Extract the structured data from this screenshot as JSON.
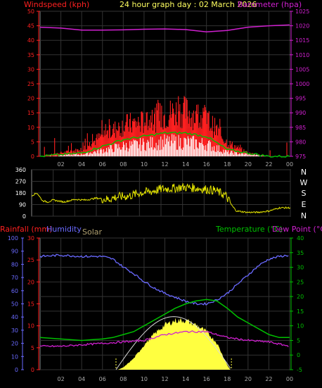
{
  "header": {
    "left_label": "Windspeed (kph)",
    "center_label": "24 hour graph day : 02 March 2026",
    "right_label": "Barometer (hpa)"
  },
  "lower_header": {
    "rain_label": "Rainfall (mm)",
    "humidity_label": "Humidity",
    "solar_label": "Solar",
    "temp_label": "Temperature (°C)",
    "dew_label": "Dew Point (°C)"
  },
  "colors": {
    "wind": "#ff2020",
    "gust_avg": "#00c000",
    "wind_avg": "#ffffff",
    "barometer": "#d020d0",
    "direction": "#e6e600",
    "humidity": "#6a6aff",
    "temperature": "#00c000",
    "dewpoint": "#d020d0",
    "solar_fill": "#ffff40",
    "axis_wind": "#ff2020",
    "axis_baro": "#d020d0",
    "axis_rain": "#ff2020",
    "axis_hum": "#6a6aff",
    "axis_temp": "#00c000"
  },
  "chart_data": [
    {
      "id": "wind",
      "type": "line",
      "xlabel": "",
      "x_ticks": [
        "02",
        "04",
        "06",
        "08",
        "10",
        "12",
        "14",
        "16",
        "18",
        "20",
        "22",
        "00"
      ],
      "left_axis": {
        "label": "Windspeed (kph)",
        "ylim": [
          0,
          50
        ],
        "ticks": [
          "0",
          "5",
          "10",
          "15",
          "20",
          "25",
          "30",
          "35",
          "40",
          "45",
          "50"
        ]
      },
      "right_axis": {
        "label": "Barometer (hpa)",
        "ylim": [
          975,
          1025
        ],
        "ticks": [
          "975",
          "980",
          "985",
          "990",
          "995",
          "1000",
          "1005",
          "1010",
          "1015",
          "1020",
          "1025"
        ]
      },
      "series": [
        {
          "name": "Barometer (hpa)",
          "axis": "right",
          "x": [
            0,
            2,
            4,
            6,
            8,
            10,
            12,
            14,
            16,
            18,
            20,
            22,
            24
          ],
          "values": [
            1019.5,
            1019.2,
            1018.5,
            1018.5,
            1018.6,
            1018.8,
            1018.9,
            1018.7,
            1017.9,
            1018.4,
            1019.5,
            1020.0,
            1020.3
          ]
        },
        {
          "axis": "left",
          "x": [
            0,
            4,
            6,
            8,
            10,
            12,
            13,
            14,
            15,
            16,
            18,
            20,
            22,
            24
          ],
          "values": [
            0,
            2,
            6,
            9,
            10,
            12,
            13,
            13,
            12,
            11,
            4,
            1,
            0,
            0
          ]
        },
        {
          "axis": "left",
          "x": [
            0,
            4,
            6,
            8,
            10,
            12,
            14,
            16,
            18,
            20,
            22,
            24
          ],
          "values": [
            0,
            1,
            3,
            5,
            6,
            7,
            7,
            6,
            2,
            1,
            0,
            0
          ]
        }
      ]
    },
    {
      "id": "direction",
      "type": "line",
      "x_ticks": [
        "02",
        "04",
        "06",
        "08",
        "10",
        "12",
        "14",
        "16",
        "18",
        "20",
        "22",
        "00"
      ],
      "left_axis": {
        "ylim": [
          0,
          360
        ],
        "ticks": [
          "0",
          "90",
          "180",
          "270",
          "360"
        ]
      },
      "right_axis": {
        "ticks": [
          "N",
          "E",
          "S",
          "W",
          "N"
        ]
      },
      "series": [
        {
          "x": [
            0,
            0.5,
            1,
            1.5,
            2,
            3,
            4,
            5,
            6,
            7,
            8,
            9,
            10,
            11,
            12,
            13,
            14,
            15,
            16,
            17,
            18,
            18.6,
            19,
            20,
            21,
            22,
            23,
            24
          ],
          "values": [
            160,
            180,
            120,
            110,
            125,
            110,
            130,
            125,
            140,
            130,
            150,
            155,
            180,
            190,
            210,
            215,
            225,
            220,
            210,
            200,
            160,
            80,
            40,
            30,
            30,
            40,
            65,
            65
          ]
        }
      ]
    },
    {
      "id": "temperature",
      "type": "line",
      "x_ticks": [
        "02",
        "04",
        "06",
        "08",
        "10",
        "12",
        "14",
        "16",
        "18",
        "20",
        "22",
        "00"
      ],
      "left_axis": {
        "label": "Rainfall (mm)",
        "ylim": [
          0,
          30
        ],
        "ticks": [
          "0",
          "5",
          "10",
          "15",
          "20",
          "25",
          "30"
        ]
      },
      "humidity_axis": {
        "label": "Humidity",
        "ylim": [
          0,
          100
        ],
        "ticks": [
          "0",
          "10",
          "20",
          "30",
          "40",
          "50",
          "60",
          "70",
          "80",
          "90",
          "100"
        ]
      },
      "right_axis": {
        "label": "Temperature (°C)",
        "ylim": [
          -5,
          40
        ],
        "ticks": [
          "-5",
          "0",
          "5",
          "10",
          "15",
          "20",
          "25",
          "30",
          "35",
          "40"
        ]
      },
      "series": [
        {
          "name": "Humidity",
          "axis": "humidity",
          "x": [
            0,
            2,
            4,
            6,
            7,
            8,
            9,
            10,
            11,
            12,
            13,
            14,
            15,
            16,
            17,
            18,
            19,
            20,
            21,
            22,
            23,
            24
          ],
          "values": [
            86,
            87,
            86,
            86,
            84,
            78,
            73,
            67,
            62,
            58,
            55,
            52,
            50,
            50,
            53,
            58,
            65,
            72,
            79,
            84,
            86,
            87
          ]
        },
        {
          "name": "Temperature (°C)",
          "axis": "temp",
          "x": [
            0,
            2,
            4,
            6,
            7,
            8,
            9,
            10,
            11,
            12,
            13,
            14,
            15,
            16,
            17,
            18,
            19,
            20,
            21,
            22,
            23,
            24
          ],
          "values": [
            6,
            5.5,
            5,
            5.5,
            6,
            7,
            8,
            10,
            12,
            14,
            16,
            17.5,
            18.5,
            19,
            18.5,
            16,
            13,
            11,
            9,
            7,
            6,
            6
          ]
        },
        {
          "name": "Dew Point (°C)",
          "axis": "temp",
          "x": [
            0,
            2,
            4,
            6,
            8,
            10,
            11,
            12,
            13,
            14,
            15,
            16,
            17,
            18,
            20,
            22,
            24
          ],
          "values": [
            3,
            3,
            3.5,
            4,
            4.5,
            5,
            6,
            7,
            7.5,
            8,
            8,
            8,
            7,
            6,
            5,
            4.5,
            3
          ]
        },
        {
          "name": "Solar",
          "axis": "solar",
          "x": [
            7.5,
            8,
            9,
            10,
            11,
            12,
            13,
            14,
            15,
            16,
            17,
            17.6,
            18,
            18.3
          ],
          "values": [
            0,
            0.5,
            2.5,
            5.5,
            8,
            10,
            11,
            11,
            10,
            8.5,
            6,
            3,
            1,
            0
          ]
        }
      ]
    }
  ]
}
